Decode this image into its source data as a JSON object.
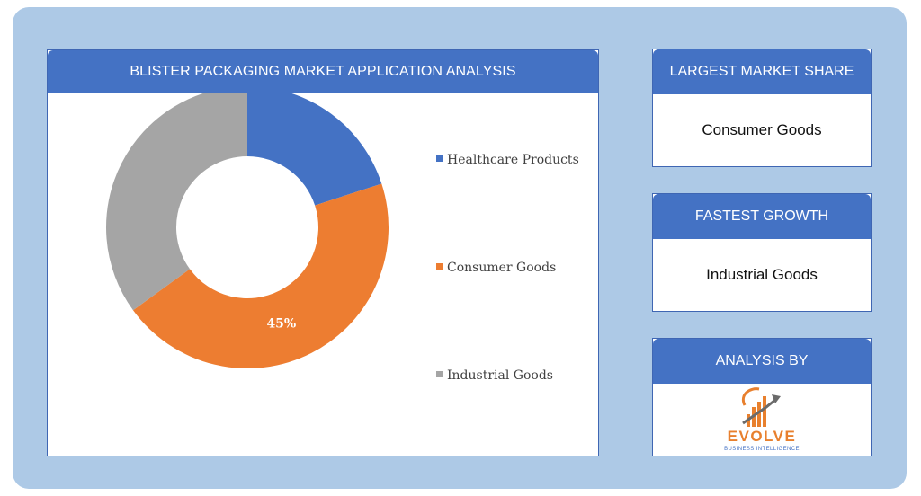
{
  "main_card": {
    "title": "BLISTER PACKAGING MARKET APPLICATION ANALYSIS"
  },
  "largest_share": {
    "title": "LARGEST MARKET SHARE",
    "value": "Consumer Goods"
  },
  "fastest_growth": {
    "title": "FASTEST GROWTH",
    "value": "Industrial Goods"
  },
  "analysis_by": {
    "title": "ANALYSIS BY",
    "logo_name": "EVOLVE",
    "logo_tagline": "BUSINESS INTELLIGENCE",
    "logo_icon": "growth-bars-arrow-icon"
  },
  "colors": {
    "header": "#4472c4",
    "frame": "#adc9e6",
    "healthcare": "#4472c4",
    "consumer": "#ed7d31",
    "industrial": "#a5a5a5",
    "logo_orange": "#e8802e",
    "logo_gray": "#6b6b6b"
  },
  "chart_data": {
    "type": "pie",
    "donut": true,
    "categories": [
      "Healthcare Products",
      "Consumer Goods",
      "Industrial Goods"
    ],
    "values": [
      20,
      45,
      35
    ],
    "data_labels": [
      "",
      "45%",
      ""
    ],
    "legend_position": "right",
    "start_angle": "12 o'clock, clockwise"
  }
}
